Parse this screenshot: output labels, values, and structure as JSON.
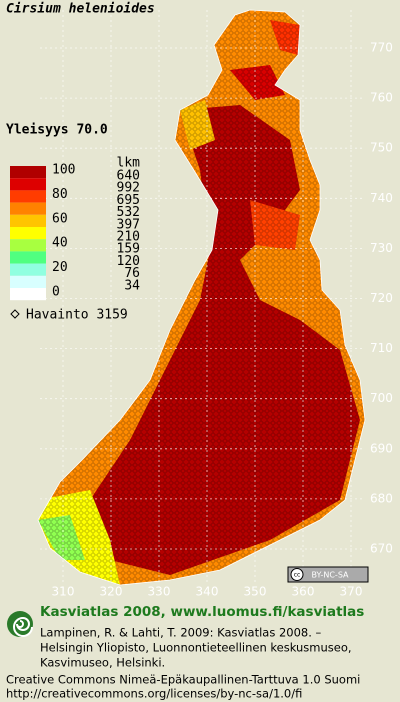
{
  "title": "Cirsium helenioides",
  "frequency": "Yleisyys 70.0",
  "legend": {
    "scale_labels": [
      100,
      80,
      60,
      40,
      20,
      0
    ],
    "count_header": "lkm",
    "counts": [
      640,
      992,
      695,
      532,
      397,
      210,
      159,
      120,
      76,
      34
    ],
    "observations": "Havainto 3159"
  },
  "axis_right": [
    770,
    760,
    750,
    740,
    730,
    720,
    710,
    700,
    690,
    680,
    670
  ],
  "axis_bottom": [
    310,
    320,
    330,
    340,
    350,
    360,
    370
  ],
  "license_badge": "BY-NC-SA",
  "credits": {
    "heading": "Kasviatlas 2008, www.luomus.fi/kasviatlas",
    "lines": [
      "Lampinen, R. & Lahti, T. 2009: Kasviatlas 2008. –",
      "Helsingin Yliopisto, Luonnontieteellinen keskusmuseo,",
      "Kasvimuseo, Helsinki."
    ],
    "license": "Creative Commons Nimeä-Epäkaupallinen-Tarttuva 1.0 Suomi",
    "url": "http://creativecommons.org/licenses/by-nc-sa/1.0/fi"
  }
}
